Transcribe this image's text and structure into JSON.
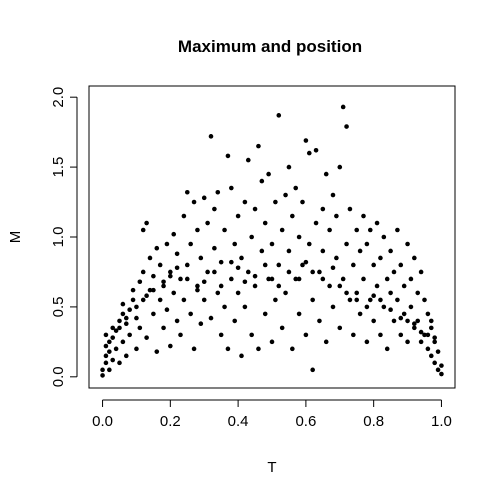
{
  "chart_data": {
    "type": "scatter",
    "title": "Maximum and position",
    "xlabel": "T",
    "ylabel": "M",
    "xlim": [
      0.0,
      1.0
    ],
    "ylim": [
      0.0,
      2.0
    ],
    "xticks": [
      0.0,
      0.2,
      0.4,
      0.6,
      0.8,
      1.0
    ],
    "xtick_labels": [
      "0.0",
      "0.2",
      "0.4",
      "0.6",
      "0.8",
      "1.0"
    ],
    "yticks": [
      0.0,
      0.5,
      1.0,
      1.5,
      2.0
    ],
    "ytick_labels": [
      "0.0",
      "0.5",
      "1.0",
      "1.5",
      "2.0"
    ],
    "grid": false,
    "legend": "none",
    "marker_color": "#000000",
    "points": [
      [
        0.0,
        0.01
      ],
      [
        0.0,
        0.05
      ],
      [
        0.01,
        0.1
      ],
      [
        0.01,
        0.15
      ],
      [
        0.01,
        0.22
      ],
      [
        0.01,
        0.3
      ],
      [
        0.02,
        0.05
      ],
      [
        0.02,
        0.18
      ],
      [
        0.02,
        0.25
      ],
      [
        0.03,
        0.12
      ],
      [
        0.03,
        0.28
      ],
      [
        0.03,
        0.35
      ],
      [
        0.04,
        0.2
      ],
      [
        0.04,
        0.33
      ],
      [
        0.05,
        0.1
      ],
      [
        0.05,
        0.4
      ],
      [
        0.06,
        0.25
      ],
      [
        0.06,
        0.45
      ],
      [
        0.06,
        0.52
      ],
      [
        0.07,
        0.38
      ],
      [
        0.07,
        0.15
      ],
      [
        0.08,
        0.48
      ],
      [
        0.08,
        0.3
      ],
      [
        0.09,
        0.55
      ],
      [
        0.09,
        0.62
      ],
      [
        0.1,
        0.42
      ],
      [
        0.1,
        0.2
      ],
      [
        0.11,
        0.68
      ],
      [
        0.11,
        0.35
      ],
      [
        0.12,
        0.75
      ],
      [
        0.12,
        0.55
      ],
      [
        0.12,
        1.05
      ],
      [
        0.13,
        0.28
      ],
      [
        0.13,
        1.1
      ],
      [
        0.14,
        0.62
      ],
      [
        0.14,
        0.85
      ],
      [
        0.15,
        0.45
      ],
      [
        0.15,
        0.72
      ],
      [
        0.16,
        0.18
      ],
      [
        0.16,
        0.92
      ],
      [
        0.17,
        0.55
      ],
      [
        0.17,
        0.8
      ],
      [
        0.18,
        0.35
      ],
      [
        0.18,
        0.65
      ],
      [
        0.19,
        0.95
      ],
      [
        0.19,
        0.48
      ],
      [
        0.2,
        0.22
      ],
      [
        0.2,
        0.75
      ],
      [
        0.21,
        0.6
      ],
      [
        0.21,
        1.02
      ],
      [
        0.22,
        0.4
      ],
      [
        0.22,
        0.88
      ],
      [
        0.23,
        0.7
      ],
      [
        0.23,
        0.3
      ],
      [
        0.24,
        1.15
      ],
      [
        0.24,
        0.55
      ],
      [
        0.25,
        1.32
      ],
      [
        0.25,
        0.8
      ],
      [
        0.26,
        0.45
      ],
      [
        0.26,
        0.95
      ],
      [
        0.27,
        0.2
      ],
      [
        0.27,
        1.25
      ],
      [
        0.28,
        0.65
      ],
      [
        0.28,
        1.05
      ],
      [
        0.29,
        0.38
      ],
      [
        0.29,
        0.85
      ],
      [
        0.3,
        1.28
      ],
      [
        0.3,
        0.55
      ],
      [
        0.31,
        0.75
      ],
      [
        0.31,
        1.1
      ],
      [
        0.32,
        1.72
      ],
      [
        0.32,
        0.42
      ],
      [
        0.33,
        0.92
      ],
      [
        0.33,
        1.2
      ],
      [
        0.34,
        0.6
      ],
      [
        0.34,
        1.32
      ],
      [
        0.35,
        0.3
      ],
      [
        0.35,
        0.82
      ],
      [
        0.36,
        1.05
      ],
      [
        0.36,
        0.5
      ],
      [
        0.37,
        1.58
      ],
      [
        0.37,
        0.2
      ],
      [
        0.38,
        1.35
      ],
      [
        0.38,
        0.7
      ],
      [
        0.39,
        0.95
      ],
      [
        0.39,
        0.4
      ],
      [
        0.4,
        1.15
      ],
      [
        0.4,
        0.6
      ],
      [
        0.41,
        0.15
      ],
      [
        0.41,
        0.85
      ],
      [
        0.42,
        1.25
      ],
      [
        0.42,
        0.5
      ],
      [
        0.43,
        1.55
      ],
      [
        0.43,
        0.75
      ],
      [
        0.44,
        1.0
      ],
      [
        0.44,
        0.3
      ],
      [
        0.45,
        1.2
      ],
      [
        0.45,
        0.65
      ],
      [
        0.46,
        1.65
      ],
      [
        0.46,
        0.2
      ],
      [
        0.47,
        0.9
      ],
      [
        0.47,
        1.4
      ],
      [
        0.48,
        0.45
      ],
      [
        0.48,
        1.1
      ],
      [
        0.49,
        0.7
      ],
      [
        0.49,
        1.45
      ],
      [
        0.5,
        0.25
      ],
      [
        0.5,
        0.95
      ],
      [
        0.51,
        1.25
      ],
      [
        0.51,
        0.55
      ],
      [
        0.52,
        1.87
      ],
      [
        0.52,
        0.8
      ],
      [
        0.53,
        1.05
      ],
      [
        0.53,
        0.35
      ],
      [
        0.54,
        1.3
      ],
      [
        0.54,
        0.6
      ],
      [
        0.55,
        1.5
      ],
      [
        0.55,
        0.9
      ],
      [
        0.56,
        0.2
      ],
      [
        0.56,
        1.15
      ],
      [
        0.57,
        0.7
      ],
      [
        0.57,
        1.35
      ],
      [
        0.58,
        0.45
      ],
      [
        0.58,
        1.0
      ],
      [
        0.59,
        1.25
      ],
      [
        0.59,
        0.8
      ],
      [
        0.6,
        1.69
      ],
      [
        0.6,
        0.3
      ],
      [
        0.61,
        0.95
      ],
      [
        0.61,
        1.6
      ],
      [
        0.62,
        0.05
      ],
      [
        0.62,
        0.55
      ],
      [
        0.63,
        1.1
      ],
      [
        0.63,
        1.62
      ],
      [
        0.64,
        0.75
      ],
      [
        0.64,
        0.4
      ],
      [
        0.65,
        1.2
      ],
      [
        0.65,
        0.9
      ],
      [
        0.66,
        1.45
      ],
      [
        0.66,
        0.25
      ],
      [
        0.67,
        0.65
      ],
      [
        0.67,
        1.05
      ],
      [
        0.68,
        1.3
      ],
      [
        0.68,
        0.5
      ],
      [
        0.69,
        0.85
      ],
      [
        0.69,
        1.15
      ],
      [
        0.7,
        0.35
      ],
      [
        0.7,
        1.5
      ],
      [
        0.71,
        1.93
      ],
      [
        0.71,
        0.7
      ],
      [
        0.72,
        1.79
      ],
      [
        0.72,
        0.95
      ],
      [
        0.73,
        0.55
      ],
      [
        0.73,
        1.2
      ],
      [
        0.74,
        0.8
      ],
      [
        0.74,
        0.3
      ],
      [
        0.75,
        1.05
      ],
      [
        0.75,
        0.6
      ],
      [
        0.76,
        0.9
      ],
      [
        0.76,
        0.45
      ],
      [
        0.77,
        1.15
      ],
      [
        0.77,
        0.7
      ],
      [
        0.78,
        0.25
      ],
      [
        0.78,
        0.95
      ],
      [
        0.79,
        0.55
      ],
      [
        0.79,
        1.05
      ],
      [
        0.8,
        0.8
      ],
      [
        0.8,
        0.4
      ],
      [
        0.81,
        0.65
      ],
      [
        0.81,
        1.1
      ],
      [
        0.82,
        0.3
      ],
      [
        0.82,
        0.85
      ],
      [
        0.83,
        0.5
      ],
      [
        0.83,
        1.0
      ],
      [
        0.84,
        0.7
      ],
      [
        0.84,
        0.2
      ],
      [
        0.85,
        0.6
      ],
      [
        0.85,
        0.9
      ],
      [
        0.86,
        0.4
      ],
      [
        0.86,
        0.75
      ],
      [
        0.87,
        0.55
      ],
      [
        0.87,
        1.05
      ],
      [
        0.88,
        0.3
      ],
      [
        0.88,
        0.8
      ],
      [
        0.89,
        0.65
      ],
      [
        0.89,
        0.45
      ],
      [
        0.9,
        0.95
      ],
      [
        0.9,
        0.25
      ],
      [
        0.91,
        0.7
      ],
      [
        0.91,
        0.5
      ],
      [
        0.92,
        0.85
      ],
      [
        0.92,
        0.35
      ],
      [
        0.93,
        0.6
      ],
      [
        0.93,
        0.4
      ],
      [
        0.94,
        0.75
      ],
      [
        0.94,
        0.25
      ],
      [
        0.95,
        0.55
      ],
      [
        0.95,
        0.3
      ],
      [
        0.96,
        0.45
      ],
      [
        0.96,
        0.2
      ],
      [
        0.97,
        0.35
      ],
      [
        0.97,
        0.15
      ],
      [
        0.98,
        0.25
      ],
      [
        0.98,
        0.1
      ],
      [
        0.99,
        0.18
      ],
      [
        0.99,
        0.05
      ],
      [
        1.0,
        0.08
      ],
      [
        1.0,
        0.02
      ],
      [
        0.05,
        0.35
      ],
      [
        0.07,
        0.42
      ],
      [
        0.1,
        0.5
      ],
      [
        0.13,
        0.58
      ],
      [
        0.15,
        0.62
      ],
      [
        0.18,
        0.68
      ],
      [
        0.2,
        0.72
      ],
      [
        0.22,
        0.78
      ],
      [
        0.25,
        0.7
      ],
      [
        0.28,
        0.62
      ],
      [
        0.3,
        0.68
      ],
      [
        0.33,
        0.75
      ],
      [
        0.35,
        0.65
      ],
      [
        0.38,
        0.82
      ],
      [
        0.4,
        0.78
      ],
      [
        0.42,
        0.68
      ],
      [
        0.45,
        0.72
      ],
      [
        0.48,
        0.8
      ],
      [
        0.5,
        0.7
      ],
      [
        0.52,
        0.65
      ],
      [
        0.55,
        0.75
      ],
      [
        0.58,
        0.7
      ],
      [
        0.6,
        0.82
      ],
      [
        0.62,
        0.75
      ],
      [
        0.65,
        0.7
      ],
      [
        0.68,
        0.78
      ],
      [
        0.7,
        0.65
      ],
      [
        0.72,
        0.6
      ],
      [
        0.75,
        0.55
      ],
      [
        0.78,
        0.5
      ],
      [
        0.8,
        0.58
      ],
      [
        0.82,
        0.55
      ],
      [
        0.85,
        0.48
      ],
      [
        0.88,
        0.42
      ],
      [
        0.9,
        0.4
      ],
      [
        0.92,
        0.38
      ],
      [
        0.94,
        0.32
      ],
      [
        0.96,
        0.3
      ],
      [
        0.98,
        0.28
      ],
      [
        0.97,
        0.4
      ]
    ]
  }
}
